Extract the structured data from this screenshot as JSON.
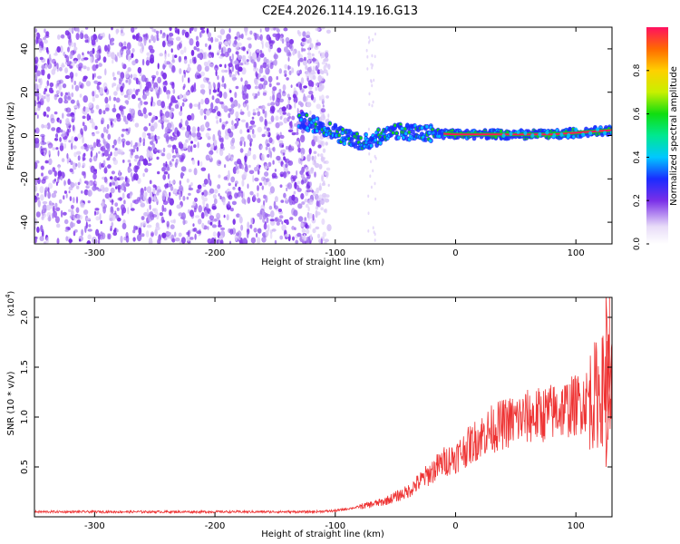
{
  "title": "C2E4.2026.114.19.16.G13",
  "chart_data": [
    {
      "type": "heatmap",
      "name": "frequency-spectrogram",
      "xlabel": "Height of straight line (km)",
      "ylabel": "Frequency (Hz)",
      "xlim": [
        -350,
        130
      ],
      "ylim": [
        -50,
        50
      ],
      "xticks": [
        -300,
        -200,
        -100,
        0,
        100
      ],
      "yticks": [
        -40,
        -20,
        0,
        20,
        40
      ],
      "noise_region_km": [
        -350,
        -105
      ],
      "signal_start_km": -130,
      "signal_track": {
        "x": [
          -130,
          -110,
          -90,
          -75,
          -60,
          -45,
          -30,
          -15,
          0,
          40,
          80,
          130
        ],
        "y": [
          7,
          4,
          -1,
          -3,
          0,
          2,
          1,
          1,
          0.5,
          0.5,
          0.5,
          2.5
        ]
      },
      "colorbar": {
        "label": "Normalized spectral amplitude",
        "range": [
          0,
          1
        ],
        "ticks": [
          "0.0",
          "0.2",
          "0.4",
          "0.6",
          "0.8"
        ]
      }
    },
    {
      "type": "line",
      "name": "snr-profile",
      "xlabel": "Height of straight line (km)",
      "ylabel": "SNR (10 * v/v)",
      "multiplier_label": "(x10",
      "multiplier_exp": "4",
      "multiplier_close": ")",
      "xlim": [
        -350,
        130
      ],
      "ylim": [
        0,
        2.2
      ],
      "xticks": [
        -300,
        -200,
        -100,
        0,
        100
      ],
      "yticks": [
        "0.5",
        "1.0",
        "1.5",
        "2.0"
      ],
      "color": "#ee3333",
      "series": [
        {
          "name": "SNR",
          "x": [
            -350,
            -300,
            -250,
            -200,
            -150,
            -120,
            -100,
            -80,
            -60,
            -40,
            -30,
            -20,
            -10,
            0,
            10,
            20,
            30,
            40,
            50,
            60,
            70,
            80,
            90,
            100,
            110,
            120,
            128,
            130
          ],
          "y": [
            0.05,
            0.05,
            0.05,
            0.05,
            0.05,
            0.05,
            0.06,
            0.1,
            0.15,
            0.25,
            0.35,
            0.45,
            0.55,
            0.6,
            0.7,
            0.8,
            0.88,
            0.93,
            0.97,
            1.0,
            1.02,
            1.05,
            1.08,
            1.12,
            1.18,
            1.25,
            1.35,
            1.3
          ]
        }
      ]
    }
  ]
}
